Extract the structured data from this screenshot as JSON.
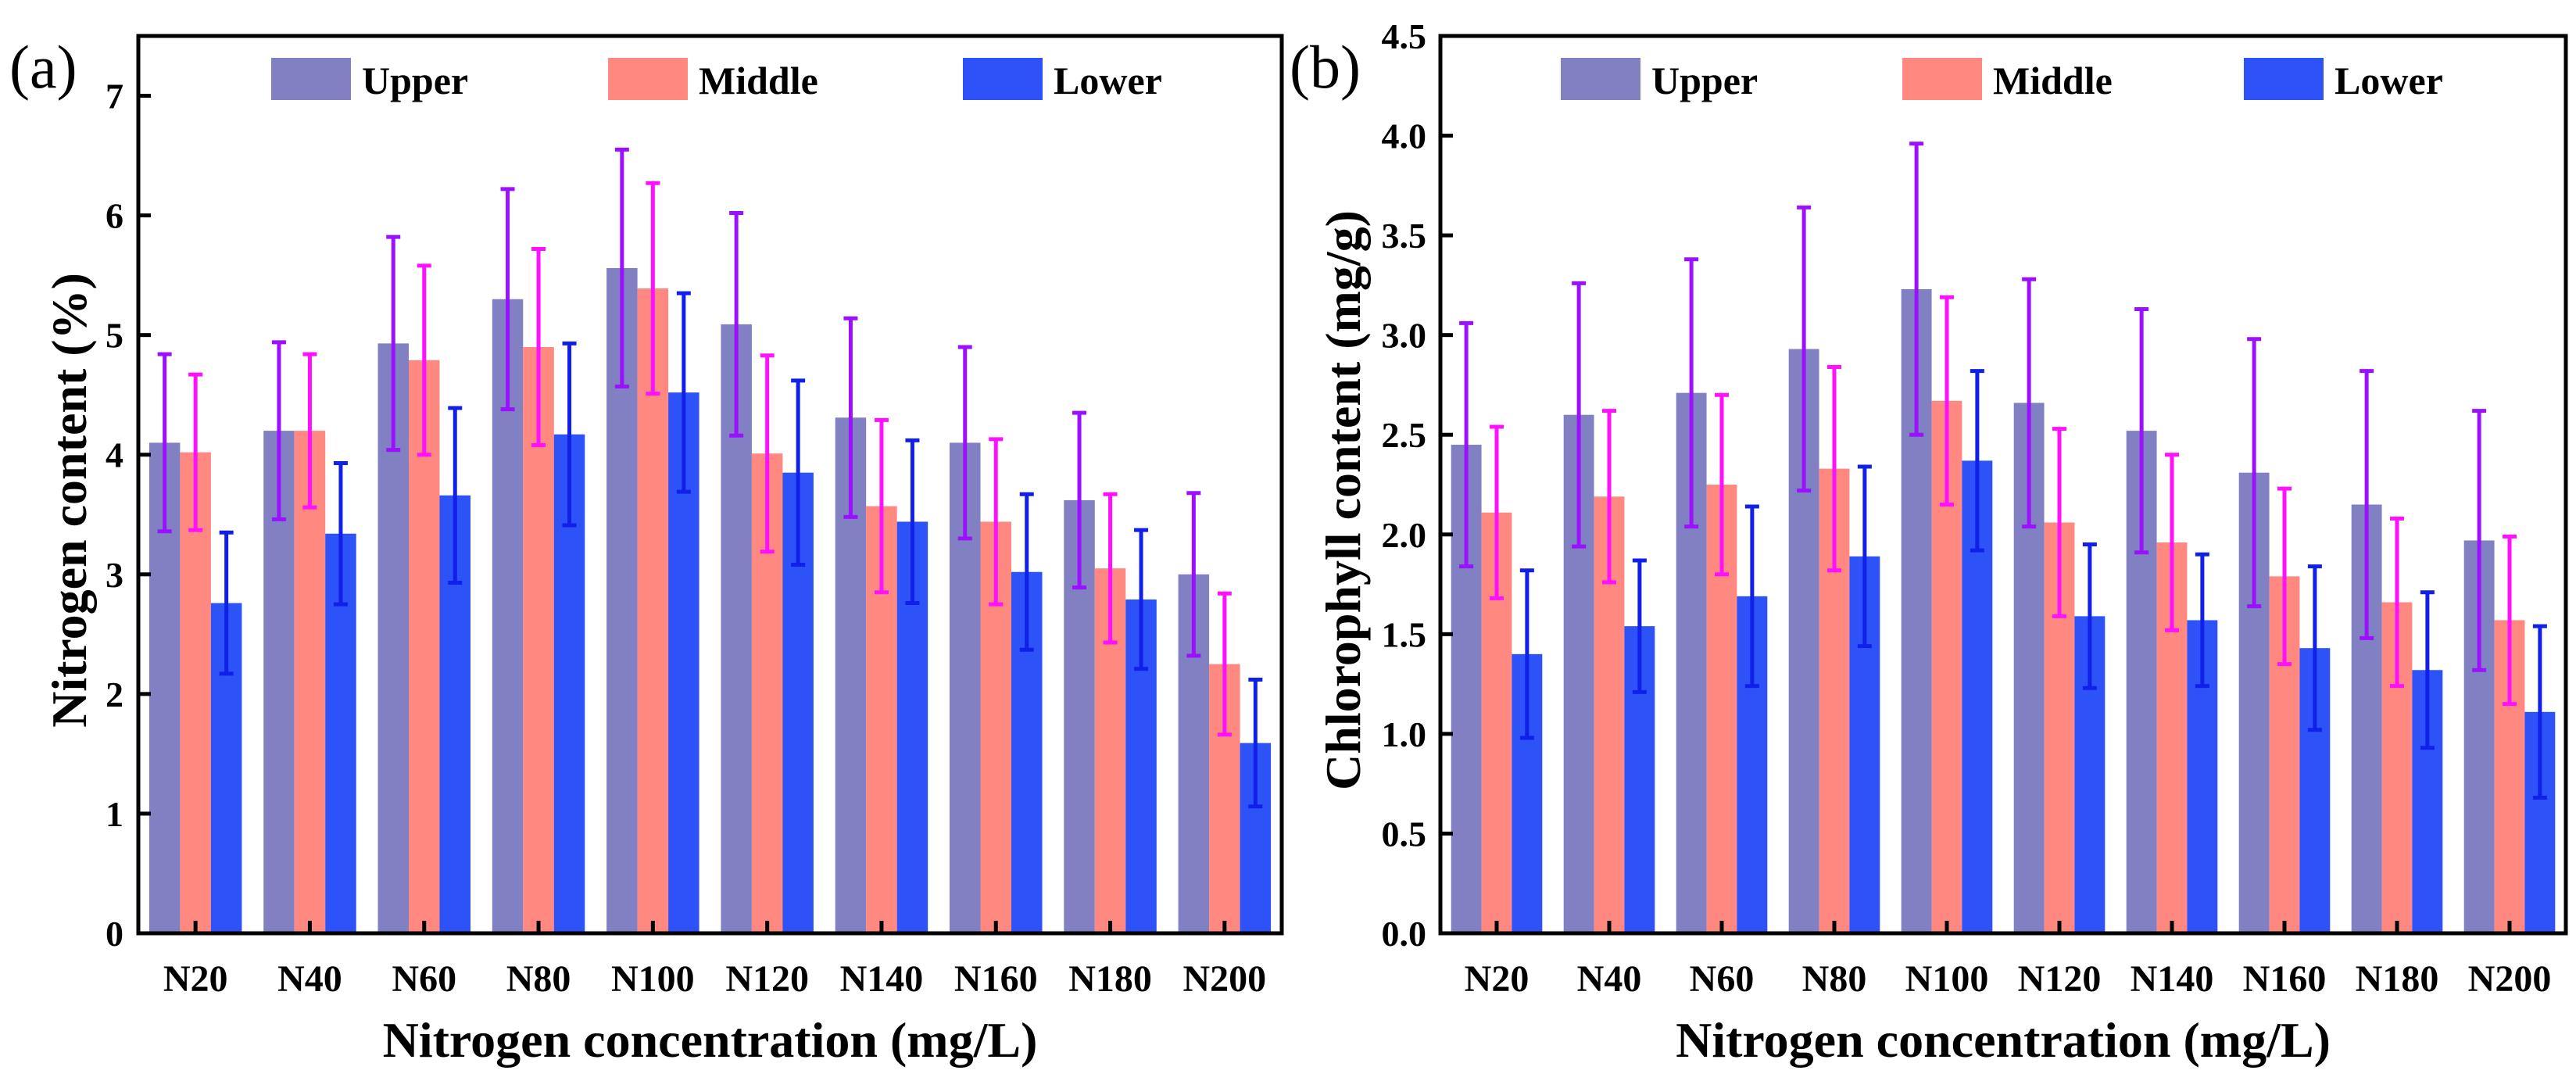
{
  "chart_data": [
    {
      "type": "bar",
      "panel_label": "(a)",
      "title": "",
      "xlabel": "Nitrogen concentration (mg/L)",
      "ylabel": "Nitrogen content (%)",
      "ylim": [
        0,
        7.5
      ],
      "yticks": [
        0,
        1,
        2,
        3,
        4,
        5,
        6,
        7
      ],
      "ytick_labels": [
        "0",
        "1",
        "2",
        "3",
        "4",
        "5",
        "6",
        "7"
      ],
      "legend_position": "top",
      "grid": false,
      "categories": [
        "N20",
        "N40",
        "N60",
        "N80",
        "N100",
        "N120",
        "N140",
        "N160",
        "N180",
        "N200"
      ],
      "series": [
        {
          "name": "Upper",
          "color": "#8080c2",
          "error_color": "#9b10ff",
          "values": [
            4.1,
            4.2,
            4.93,
            5.3,
            5.56,
            5.09,
            4.31,
            4.1,
            3.62,
            3.0
          ],
          "errors": [
            0.74,
            0.74,
            0.89,
            0.92,
            0.99,
            0.93,
            0.83,
            0.8,
            0.73,
            0.68
          ]
        },
        {
          "name": "Middle",
          "color": "#ff8880",
          "error_color": "#ff10ff",
          "values": [
            4.02,
            4.2,
            4.79,
            4.9,
            5.39,
            4.01,
            3.57,
            3.44,
            3.05,
            2.25
          ],
          "errors": [
            0.65,
            0.64,
            0.79,
            0.82,
            0.88,
            0.82,
            0.72,
            0.69,
            0.62,
            0.59
          ]
        },
        {
          "name": "Lower",
          "color": "#2d52f7",
          "error_color": "#1020e8",
          "values": [
            2.76,
            3.34,
            3.66,
            4.17,
            4.52,
            3.85,
            3.44,
            3.02,
            2.79,
            1.59
          ],
          "errors": [
            0.59,
            0.59,
            0.73,
            0.76,
            0.83,
            0.77,
            0.68,
            0.65,
            0.58,
            0.53
          ]
        }
      ]
    },
    {
      "type": "bar",
      "panel_label": "(b)",
      "title": "",
      "xlabel": "Nitrogen concentration (mg/L)",
      "ylabel": "Chlorophyll content (mg/g)",
      "ylim": [
        0,
        4.5
      ],
      "yticks": [
        0,
        0.5,
        1,
        1.5,
        2,
        2.5,
        3,
        3.5,
        4,
        4.5
      ],
      "ytick_labels": [
        "0.0",
        "0.5",
        "1.0",
        "1.5",
        "2.0",
        "2.5",
        "3.0",
        "3.5",
        "4.0",
        "4.5"
      ],
      "legend_position": "top",
      "grid": false,
      "categories": [
        "N20",
        "N40",
        "N60",
        "N80",
        "N100",
        "N120",
        "N140",
        "N160",
        "N180",
        "N200"
      ],
      "series": [
        {
          "name": "Upper",
          "color": "#8080c2",
          "error_color": "#9b10ff",
          "values": [
            2.45,
            2.6,
            2.71,
            2.93,
            3.23,
            2.66,
            2.52,
            2.31,
            2.15,
            1.97
          ],
          "errors": [
            0.61,
            0.66,
            0.67,
            0.71,
            0.73,
            0.62,
            0.61,
            0.67,
            0.67,
            0.65
          ]
        },
        {
          "name": "Middle",
          "color": "#ff8880",
          "error_color": "#ff10ff",
          "values": [
            2.11,
            2.19,
            2.25,
            2.33,
            2.67,
            2.06,
            1.96,
            1.79,
            1.66,
            1.57
          ],
          "errors": [
            0.43,
            0.43,
            0.45,
            0.51,
            0.52,
            0.47,
            0.44,
            0.44,
            0.42,
            0.42
          ]
        },
        {
          "name": "Lower",
          "color": "#2d52f7",
          "error_color": "#1020e8",
          "values": [
            1.4,
            1.54,
            1.69,
            1.89,
            2.37,
            1.59,
            1.57,
            1.43,
            1.32,
            1.11
          ],
          "errors": [
            0.42,
            0.33,
            0.45,
            0.45,
            0.45,
            0.36,
            0.33,
            0.41,
            0.39,
            0.43
          ]
        }
      ]
    }
  ]
}
